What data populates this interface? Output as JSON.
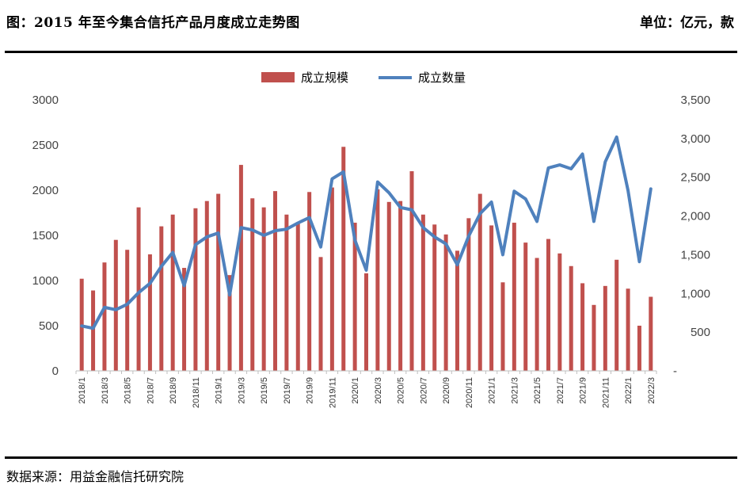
{
  "header": {
    "title": "图：2015 年至今集合信托产品月度成立走势图",
    "unit": "单位：亿元，款"
  },
  "footer": {
    "source": "数据来源：用益金融信托研究院"
  },
  "chart_data": {
    "type": "bar",
    "months": [
      "2018/1",
      "2018/2",
      "2018/3",
      "2018/4",
      "2018/5",
      "2018/6",
      "2018/7",
      "2018/8",
      "2018/9",
      "2018/10",
      "2018/11",
      "2018/12",
      "2019/1",
      "2019/2",
      "2019/3",
      "2019/4",
      "2019/5",
      "2019/6",
      "2019/7",
      "2019/8",
      "2019/9",
      "2019/10",
      "2019/11",
      "2019/12",
      "2020/1",
      "2020/2",
      "2020/3",
      "2020/4",
      "2020/5",
      "2020/6",
      "2020/7",
      "2020/8",
      "2020/9",
      "2020/10",
      "2020/11",
      "2020/12",
      "2021/1",
      "2021/2",
      "2021/3",
      "2021/4",
      "2021/5",
      "2021/6",
      "2021/7",
      "2021/8",
      "2021/9",
      "2021/10",
      "2021/11",
      "2021/12",
      "2022/1",
      "2022/2",
      "2022/3"
    ],
    "x_tick_labels": [
      "2018/1",
      "2018/3",
      "2018/5",
      "2018/7",
      "2018/9",
      "2018/11",
      "2019/1",
      "2019/3",
      "2019/5",
      "2019/7",
      "2019/9",
      "2019/11",
      "2020/1",
      "2020/3",
      "2020/5",
      "2020/7",
      "2020/9",
      "2020/11",
      "2021/1",
      "2021/3",
      "2021/5",
      "2021/7",
      "2021/9",
      "2021/11",
      "2022/1",
      "2022/3"
    ],
    "series": [
      {
        "name": "成立规模",
        "kind": "bar",
        "axis": "left",
        "color": "#C0504D",
        "values": [
          1020,
          890,
          1200,
          1450,
          1340,
          1810,
          1290,
          1600,
          1730,
          1140,
          1800,
          1880,
          1960,
          1060,
          2280,
          1910,
          1810,
          1990,
          1730,
          1640,
          1980,
          1260,
          2030,
          2480,
          1640,
          1080,
          2010,
          1870,
          1880,
          2210,
          1730,
          1620,
          1510,
          1330,
          1690,
          1960,
          1610,
          980,
          1640,
          1420,
          1250,
          1460,
          1300,
          1160,
          970,
          730,
          940,
          1230,
          910,
          500,
          820
        ]
      },
      {
        "name": "成立数量",
        "kind": "line",
        "axis": "right",
        "color": "#4F81BD",
        "values": [
          580,
          550,
          820,
          790,
          860,
          1010,
          1130,
          1350,
          1530,
          1100,
          1630,
          1730,
          1780,
          980,
          1850,
          1820,
          1750,
          1810,
          1830,
          1910,
          1980,
          1600,
          2480,
          2570,
          1690,
          1300,
          2440,
          2300,
          2110,
          2080,
          1850,
          1730,
          1640,
          1370,
          1740,
          2030,
          2180,
          1500,
          2320,
          2220,
          1930,
          2620,
          2660,
          2610,
          2800,
          1930,
          2700,
          3020,
          2330,
          1410,
          2350
        ]
      }
    ],
    "y_left": {
      "min": 0,
      "max": 3000,
      "step": 500,
      "tick_labels": [
        "0",
        "500",
        "1000",
        "1500",
        "2000",
        "2500",
        "3000"
      ]
    },
    "y_right": {
      "min": 0,
      "max": 3500,
      "step": 500,
      "tick_labels": [
        "-",
        "500",
        "1,000",
        "1,500",
        "2,000",
        "2,500",
        "3,000",
        "3,500"
      ]
    },
    "legend_position": "top-center",
    "grid": false
  }
}
